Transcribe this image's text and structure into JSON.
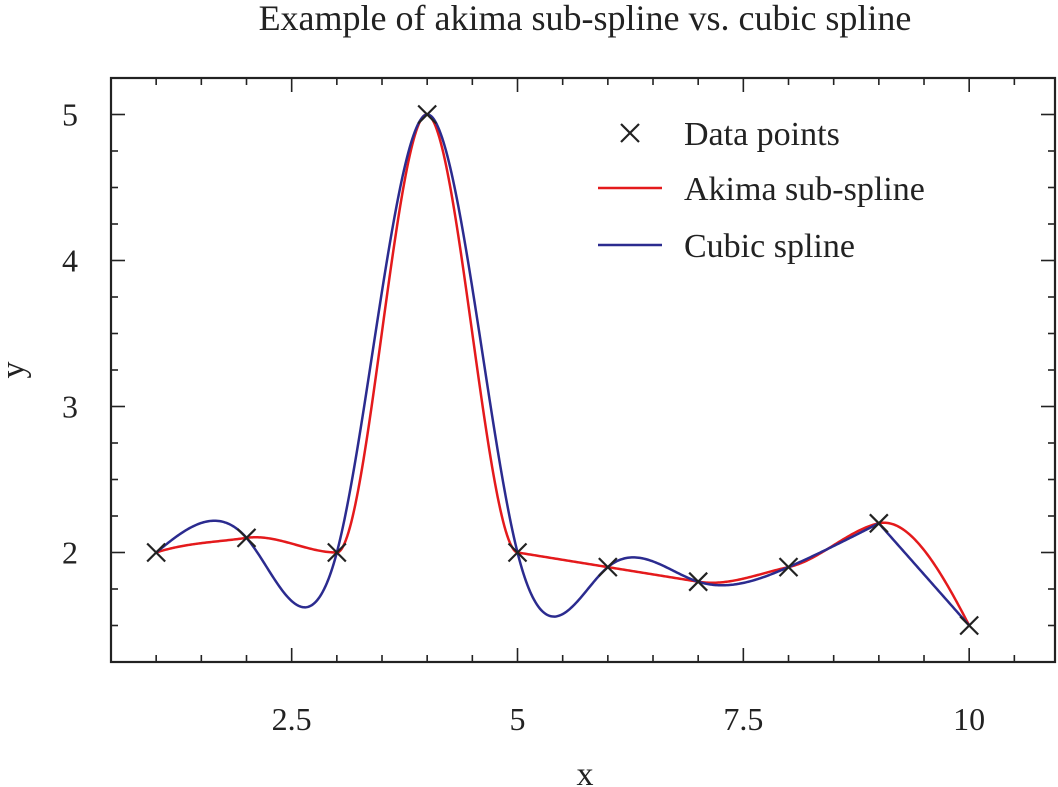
{
  "chart_data": {
    "type": "line",
    "title": "Example of akima sub-spline vs. cubic spline",
    "xlabel": "x",
    "ylabel": "y",
    "xlim": [
      0.5,
      10.95
    ],
    "ylim": [
      1.25,
      5.25
    ],
    "xticks": [
      2.5,
      5,
      7.5,
      10
    ],
    "xtick_labels": [
      "2.5",
      "5",
      "7.5",
      "10"
    ],
    "yticks": [
      2,
      3,
      4,
      5
    ],
    "ytick_labels": [
      "2",
      "3",
      "4",
      "5"
    ],
    "grid": false,
    "legend_position": "top-right",
    "points": {
      "name": "Data points",
      "x": [
        1,
        2,
        3,
        4,
        5,
        6,
        7,
        8,
        9,
        10
      ],
      "y": [
        2.0,
        2.1,
        2.0,
        5.0,
        2.0,
        1.9,
        1.8,
        1.9,
        2.2,
        1.5
      ]
    },
    "series": [
      {
        "name": "Akima sub-spline",
        "color": "#e41a1c",
        "method": "akima"
      },
      {
        "name": "Cubic spline",
        "color": "#2b2b8f",
        "method": "cubic"
      }
    ],
    "marker_color": "#222222"
  }
}
